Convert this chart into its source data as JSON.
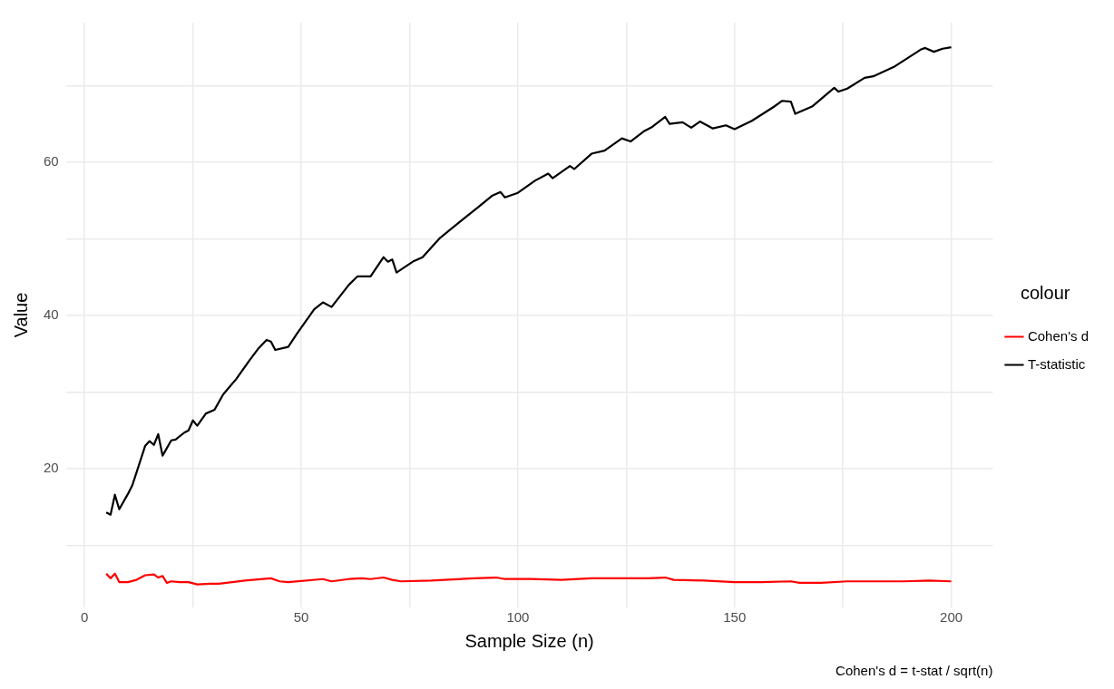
{
  "chart_data": {
    "type": "line",
    "xlabel": "Sample Size (n)",
    "ylabel": "Value",
    "legend_title": "colour",
    "legend": "right",
    "grid": true,
    "marker": "none",
    "line_style": "solid",
    "xlim": [
      -4.3,
      209.6
    ],
    "xticks": [
      0,
      {
        "value": 25,
        "label": null
      },
      50,
      {
        "value": 75,
        "label": null
      },
      100,
      {
        "value": 125,
        "label": null
      },
      150,
      {
        "value": 175,
        "label": null
      },
      200
    ],
    "ylim": [
      1.9,
      78.2
    ],
    "yticks": [
      {
        "value": 10,
        "label": null
      },
      20,
      {
        "value": 30,
        "label": null
      },
      40,
      {
        "value": 50,
        "label": null
      },
      60,
      {
        "value": 70,
        "label": null
      }
    ],
    "annotations": [
      "Cohen's d = t-stat / sqrt(n)"
    ],
    "series": [
      {
        "name": "Cohen's d",
        "color": "#ff0000",
        "x": [
          5,
          6,
          7,
          8,
          10,
          12,
          14,
          16,
          17,
          18,
          19,
          20,
          22,
          24,
          26,
          29,
          31,
          37,
          43,
          45,
          47,
          55,
          57,
          61,
          64,
          66,
          69,
          71,
          73,
          80,
          90,
          95,
          97,
          103,
          110,
          117,
          123,
          130,
          134,
          136,
          143,
          150,
          156,
          163,
          165,
          170,
          176,
          183,
          189,
          195,
          200
        ],
        "values": [
          6.3,
          5.7,
          6.3,
          5.2,
          5.2,
          5.5,
          6.1,
          6.2,
          5.8,
          6.0,
          5.1,
          5.3,
          5.2,
          5.2,
          4.9,
          5.0,
          5.0,
          5.4,
          5.7,
          5.3,
          5.2,
          5.6,
          5.3,
          5.6,
          5.7,
          5.6,
          5.8,
          5.5,
          5.3,
          5.4,
          5.7,
          5.8,
          5.6,
          5.6,
          5.5,
          5.7,
          5.7,
          5.7,
          5.8,
          5.5,
          5.4,
          5.2,
          5.2,
          5.3,
          5.1,
          5.1,
          5.3,
          5.3,
          5.3,
          5.4,
          5.3
        ]
      },
      {
        "name": "T-statistic",
        "color": "#000000",
        "x": [
          5,
          6,
          7,
          8,
          10,
          11,
          14,
          15,
          16,
          17,
          18,
          20,
          21,
          23,
          24,
          25,
          26,
          28,
          30,
          32,
          35,
          38,
          40,
          42,
          43,
          44,
          47,
          49,
          53,
          55,
          57,
          61,
          63,
          66,
          69,
          70,
          71,
          72,
          76,
          78,
          82,
          87,
          91,
          94,
          96,
          97,
          100,
          104,
          107,
          108,
          112,
          113,
          117,
          120,
          124,
          126,
          129,
          131,
          134,
          135,
          138,
          140,
          142,
          145,
          148,
          150,
          154,
          159,
          161,
          163,
          164,
          168,
          173,
          174,
          176,
          180,
          182,
          187,
          193,
          194,
          196,
          198,
          200
        ],
        "values": [
          14.3,
          14.0,
          16.6,
          14.7,
          16.7,
          17.8,
          23.0,
          23.6,
          23.1,
          24.5,
          21.7,
          23.7,
          23.8,
          24.7,
          25.0,
          26.3,
          25.6,
          27.2,
          27.7,
          29.7,
          31.7,
          34.1,
          35.6,
          36.8,
          36.6,
          35.5,
          35.9,
          37.6,
          40.8,
          41.7,
          41.1,
          44.0,
          45.1,
          45.1,
          47.6,
          47.0,
          47.3,
          45.6,
          47.1,
          47.6,
          50.1,
          52.4,
          54.2,
          55.6,
          56.1,
          55.4,
          56.0,
          57.6,
          58.5,
          57.9,
          59.5,
          59.1,
          61.1,
          61.5,
          63.1,
          62.7,
          64.0,
          64.6,
          65.9,
          65.0,
          65.2,
          64.5,
          65.3,
          64.4,
          64.8,
          64.3,
          65.4,
          67.2,
          68.0,
          67.9,
          66.3,
          67.3,
          69.7,
          69.2,
          69.6,
          71.0,
          71.2,
          72.5,
          74.7,
          74.9,
          74.4,
          74.8,
          75.0
        ]
      }
    ]
  }
}
